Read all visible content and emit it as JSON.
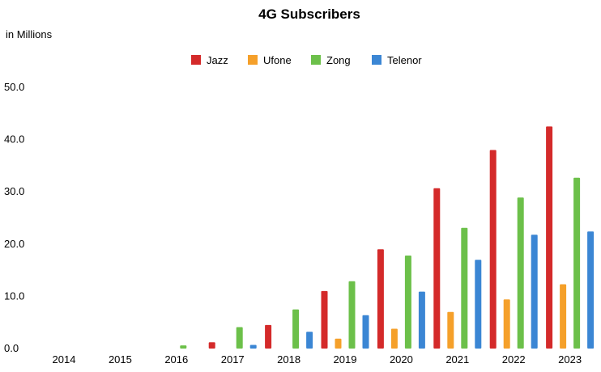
{
  "chart_data": {
    "type": "bar",
    "title": "4G Subscribers",
    "y_unit_label": "in Millions",
    "ylim": [
      0,
      50
    ],
    "yticks": [
      "0.0",
      "10.0",
      "20.0",
      "30.0",
      "40.0",
      "50.0"
    ],
    "ytick_values": [
      0,
      10,
      20,
      30,
      40,
      50
    ],
    "grid": false,
    "legend_position": "top-center",
    "categories": [
      "2014",
      "2015",
      "2016",
      "2017",
      "2018",
      "2019",
      "2020",
      "2021",
      "2022",
      "2023"
    ],
    "series": [
      {
        "name": "Jazz",
        "color": "#d42a2a",
        "values": [
          0,
          0,
          0,
          1.2,
          4.5,
          11.0,
          19.0,
          30.7,
          38.0,
          42.5
        ]
      },
      {
        "name": "Ufone",
        "color": "#f5a02a",
        "values": [
          0,
          0,
          0,
          0,
          0,
          1.9,
          3.8,
          7.0,
          9.4,
          12.3
        ]
      },
      {
        "name": "Zong",
        "color": "#6cc04a",
        "values": [
          0,
          0,
          0.6,
          4.1,
          7.5,
          12.9,
          17.8,
          23.1,
          28.9,
          32.7
        ]
      },
      {
        "name": "Telenor",
        "color": "#3b86d4",
        "values": [
          0,
          0,
          0,
          0.7,
          3.2,
          6.4,
          10.9,
          17.0,
          21.8,
          22.4
        ]
      }
    ]
  }
}
